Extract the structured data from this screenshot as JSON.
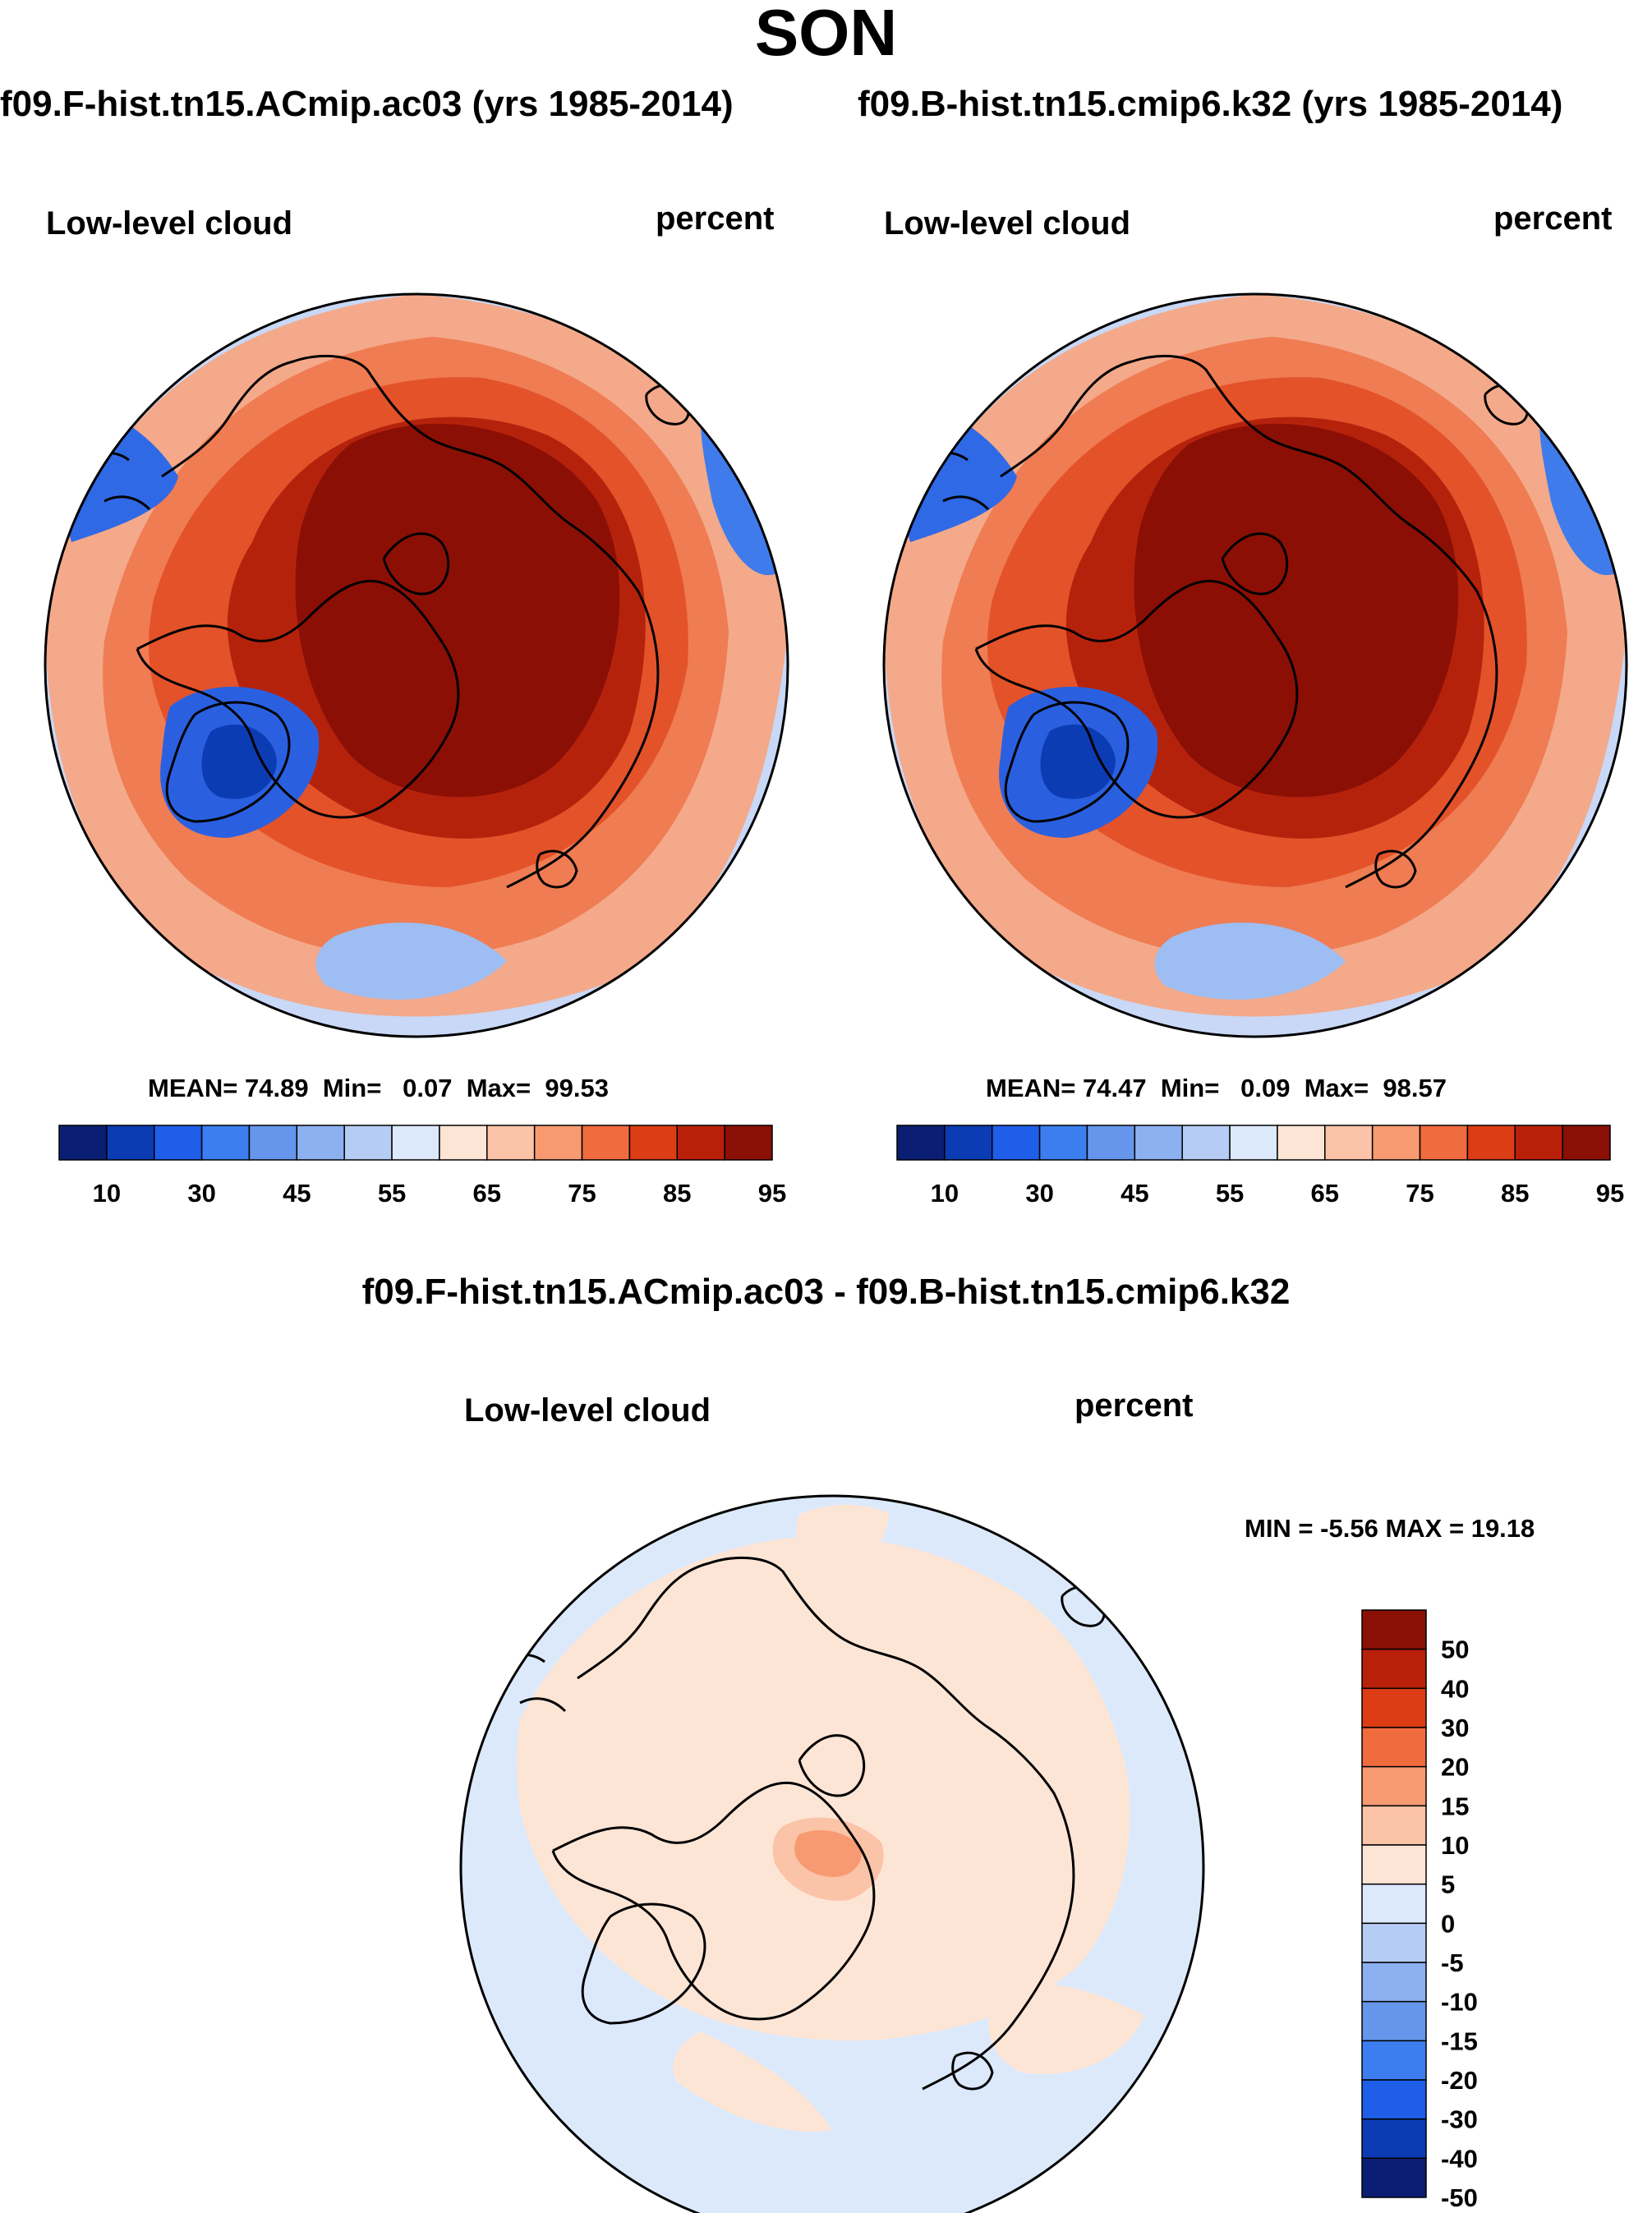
{
  "season": "SON",
  "cases": {
    "case1": "f09.F-hist.tn15.ACmip.ac03 (yrs 1985-2014)",
    "case2": "f09.B-hist.tn15.cmip6.k32 (yrs 1985-2014)"
  },
  "panels": [
    {
      "variable": "Low-level cloud",
      "units": "percent",
      "stats": {
        "mean_label": "MEAN=",
        "mean": "74.89",
        "min_label": "Min=",
        "min": "0.07",
        "max_label": "Max=",
        "max": "99.53"
      }
    },
    {
      "variable": "Low-level cloud",
      "units": "percent",
      "stats": {
        "mean_label": "MEAN=",
        "mean": "74.47",
        "min_label": "Min=",
        "min": "0.09",
        "max_label": "Max=",
        "max": "98.57"
      }
    }
  ],
  "difference": {
    "title": "f09.F-hist.tn15.ACmip.ac03 - f09.B-hist.tn15.cmip6.k32",
    "variable": "Low-level cloud",
    "units": "percent",
    "minmax": {
      "min_label": "MIN =",
      "min": "-5.56",
      "max_label": "MAX =",
      "max": "19.18"
    }
  },
  "chart_data": [
    {
      "type": "map",
      "projection": "north polar stereographic",
      "title": "Low-level cloud",
      "units": "percent",
      "colorbar": {
        "orientation": "horizontal",
        "labels": [
          "10",
          "30",
          "45",
          "55",
          "65",
          "75",
          "85",
          "95"
        ],
        "colors": [
          "#0a1f73",
          "#0b3cb3",
          "#1f5ee8",
          "#3c7ef0",
          "#6596ec",
          "#8cb0f0",
          "#b5ccf5",
          "#dce9fb",
          "#fde5d6",
          "#fbc3a7",
          "#f79a72",
          "#f06b3e",
          "#dc3d14",
          "#b8200a",
          "#8a0f05"
        ]
      }
    },
    {
      "type": "map",
      "projection": "north polar stereographic",
      "title": "Low-level cloud",
      "units": "percent",
      "colorbar": {
        "orientation": "horizontal",
        "labels": [
          "10",
          "30",
          "45",
          "55",
          "65",
          "75",
          "85",
          "95"
        ],
        "colors": [
          "#0a1f73",
          "#0b3cb3",
          "#1f5ee8",
          "#3c7ef0",
          "#6596ec",
          "#8cb0f0",
          "#b5ccf5",
          "#dce9fb",
          "#fde5d6",
          "#fbc3a7",
          "#f79a72",
          "#f06b3e",
          "#dc3d14",
          "#b8200a",
          "#8a0f05"
        ]
      }
    },
    {
      "type": "map",
      "projection": "north polar stereographic",
      "title": "Low-level cloud",
      "units": "percent",
      "colorbar": {
        "orientation": "vertical",
        "labels": [
          "50",
          "40",
          "30",
          "20",
          "15",
          "10",
          "5",
          "0",
          "-5",
          "-10",
          "-15",
          "-20",
          "-30",
          "-40",
          "-50"
        ],
        "colors": [
          "#8a0f05",
          "#b8200a",
          "#dc3d14",
          "#f06b3e",
          "#f79a72",
          "#fbc3a7",
          "#fde5d6",
          "#dce9fb",
          "#b5ccf5",
          "#8cb0f0",
          "#6596ec",
          "#3c7ef0",
          "#1f5ee8",
          "#0b3cb3",
          "#0a1f73"
        ]
      }
    }
  ]
}
